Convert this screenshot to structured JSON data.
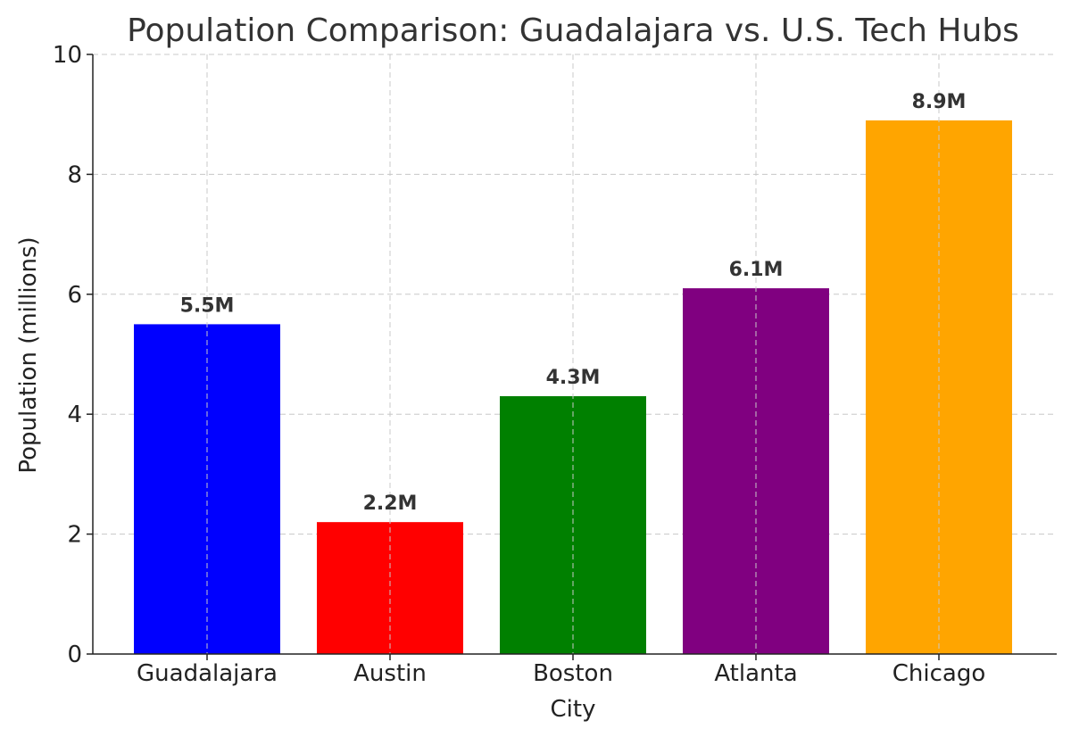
{
  "chart_data": {
    "type": "bar",
    "title": "Population Comparison: Guadalajara vs. U.S. Tech Hubs",
    "xlabel": "City",
    "ylabel": "Population (millions)",
    "categories": [
      "Guadalajara",
      "Austin",
      "Boston",
      "Atlanta",
      "Chicago"
    ],
    "values": [
      5.5,
      2.2,
      4.3,
      6.1,
      8.9
    ],
    "data_labels": [
      "5.5M",
      "2.2M",
      "4.3M",
      "6.1M",
      "8.9M"
    ],
    "colors": [
      "#0000ff",
      "#ff0000",
      "#008000",
      "#800080",
      "#ffa500"
    ],
    "ylim": [
      0,
      10
    ],
    "yticks": [
      0,
      2,
      4,
      6,
      8,
      10
    ],
    "grid": true
  }
}
